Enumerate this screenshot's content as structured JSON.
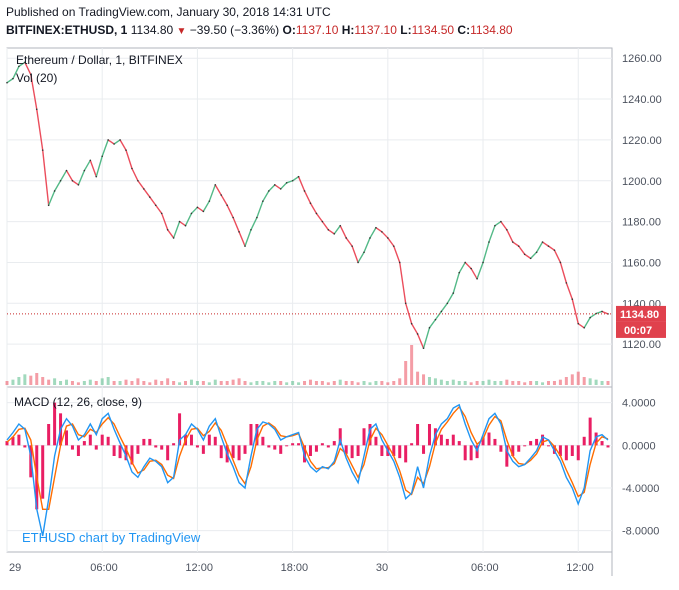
{
  "header": {
    "published": "Published on TradingView.com, January 30, 2018 14:31 UTC",
    "symbol": "BITFINEX:ETHUSD, 1",
    "last": "1134.80",
    "change": "−39.50 (−3.36%)",
    "o_label": "O:",
    "o_value": "1137.10",
    "h_label": "H:",
    "h_value": "1137.10",
    "l_label": "L:",
    "l_value": "1134.50",
    "c_label": "C:",
    "c_value": "1134.80"
  },
  "legend": {
    "title": "Ethereum / Dollar, 1, BITFINEX",
    "vol": "Vol (20)",
    "macd": "MACD (12, 26, close, 9)",
    "watermark": "ETHUSD chart by TradingView"
  },
  "colors": {
    "up": "#53b987",
    "down": "#eb4d5c",
    "price_line": "#c62828",
    "macd_line": "#2196f3",
    "signal_line": "#ff6d00",
    "hist_pos": "#e91e63",
    "hist_neg": "#e91e63",
    "grid": "#e9ecef",
    "text": "#4c525e"
  },
  "chart_data": [
    {
      "type": "line",
      "name": "price",
      "title": "Ethereum / Dollar, 1, BITFINEX",
      "current_price": "1134.80",
      "countdown": "00:07",
      "ylim": [
        1100,
        1265
      ],
      "y_ticks": [
        "1260.00",
        "1240.00",
        "1220.00",
        "1200.00",
        "1180.00",
        "1160.00",
        "1140.00",
        "1120.00"
      ],
      "x_ticks": [
        "29",
        "06:00",
        "12:00",
        "18:00",
        "30",
        "06:00",
        "12:00"
      ],
      "x": [
        0,
        6,
        12,
        18,
        24,
        30,
        36,
        42,
        48,
        54,
        60,
        66,
        72,
        78,
        84,
        90,
        96,
        102,
        108,
        114,
        120,
        126,
        132,
        138,
        144,
        150,
        156,
        162,
        168,
        174,
        180,
        186,
        192,
        198,
        204,
        210,
        216,
        222,
        228,
        234,
        240,
        246,
        252,
        258,
        264,
        270,
        276,
        282,
        288,
        294,
        300,
        306,
        312,
        318,
        324,
        330,
        336,
        342,
        348,
        354,
        360,
        366,
        372,
        378,
        384,
        390,
        396,
        402,
        408,
        414,
        420,
        426,
        432,
        438,
        444,
        450,
        456,
        462,
        468,
        474,
        480,
        486,
        492,
        498,
        504,
        510,
        516,
        522,
        528,
        534,
        540,
        546,
        552,
        558,
        564,
        570,
        576,
        582,
        588,
        594,
        600,
        606
      ],
      "values": [
        1248,
        1250,
        1256,
        1258,
        1252,
        1235,
        1215,
        1188,
        1195,
        1200,
        1205,
        1200,
        1198,
        1205,
        1210,
        1202,
        1212,
        1220,
        1218,
        1220,
        1215,
        1206,
        1200,
        1196,
        1192,
        1188,
        1184,
        1176,
        1172,
        1180,
        1178,
        1184,
        1187,
        1185,
        1190,
        1198,
        1193,
        1188,
        1182,
        1175,
        1168,
        1176,
        1182,
        1190,
        1195,
        1198,
        1196,
        1199,
        1200,
        1202,
        1195,
        1189,
        1184,
        1180,
        1176,
        1174,
        1178,
        1172,
        1168,
        1160,
        1165,
        1172,
        1177,
        1175,
        1172,
        1168,
        1160,
        1140,
        1130,
        1125,
        1118,
        1128,
        1132,
        1136,
        1140,
        1145,
        1155,
        1160,
        1157,
        1152,
        1160,
        1170,
        1178,
        1180,
        1176,
        1170,
        1168,
        1164,
        1162,
        1165,
        1170,
        1168,
        1166,
        1160,
        1150,
        1142,
        1130,
        1128,
        1133,
        1135,
        1136,
        1134.8
      ]
    },
    {
      "type": "bar",
      "name": "volume",
      "title": "Vol (20)",
      "x": [
        0,
        6,
        12,
        18,
        24,
        30,
        36,
        42,
        48,
        54,
        60,
        66,
        72,
        78,
        84,
        90,
        96,
        102,
        108,
        114,
        120,
        126,
        132,
        138,
        144,
        150,
        156,
        162,
        168,
        174,
        180,
        186,
        192,
        198,
        204,
        210,
        216,
        222,
        228,
        234,
        240,
        246,
        252,
        258,
        264,
        270,
        276,
        282,
        288,
        294,
        300,
        306,
        312,
        318,
        324,
        330,
        336,
        342,
        348,
        354,
        360,
        366,
        372,
        378,
        384,
        390,
        396,
        402,
        408,
        414,
        420,
        426,
        432,
        438,
        444,
        450,
        456,
        462,
        468,
        474,
        480,
        486,
        492,
        498,
        504,
        510,
        516,
        522,
        528,
        534,
        540,
        546,
        552,
        558,
        564,
        570,
        576,
        582,
        588,
        594,
        600,
        606
      ],
      "values": [
        3,
        4,
        6,
        8,
        7,
        9,
        6,
        4,
        5,
        3,
        4,
        3,
        2,
        3,
        4,
        3,
        5,
        6,
        3,
        3,
        4,
        3,
        5,
        3,
        2,
        4,
        3,
        5,
        3,
        2,
        3,
        4,
        3,
        3,
        2,
        4,
        3,
        3,
        4,
        5,
        3,
        2,
        3,
        3,
        2,
        3,
        3,
        2,
        3,
        2,
        3,
        4,
        3,
        3,
        2,
        3,
        4,
        3,
        3,
        2,
        3,
        2,
        3,
        3,
        2,
        3,
        5,
        18,
        30,
        10,
        8,
        6,
        5,
        4,
        3,
        4,
        3,
        3,
        2,
        3,
        3,
        4,
        3,
        3,
        4,
        3,
        3,
        2,
        3,
        3,
        2,
        3,
        3,
        4,
        6,
        8,
        10,
        6,
        5,
        4,
        3,
        3
      ]
    },
    {
      "type": "line",
      "name": "macd",
      "title": "MACD (12, 26, close, 9)",
      "ylim": [
        -10,
        5
      ],
      "y_ticks": [
        "4.0000",
        "0.0000",
        "-4.0000",
        "-8.0000"
      ],
      "x": [
        0,
        6,
        12,
        18,
        24,
        30,
        36,
        42,
        48,
        54,
        60,
        66,
        72,
        78,
        84,
        90,
        96,
        102,
        108,
        114,
        120,
        126,
        132,
        138,
        144,
        150,
        156,
        162,
        168,
        174,
        180,
        186,
        192,
        198,
        204,
        210,
        216,
        222,
        228,
        234,
        240,
        246,
        252,
        258,
        264,
        270,
        276,
        282,
        288,
        294,
        300,
        306,
        312,
        318,
        324,
        330,
        336,
        342,
        348,
        354,
        360,
        366,
        372,
        378,
        384,
        390,
        396,
        402,
        408,
        414,
        420,
        426,
        432,
        438,
        444,
        450,
        456,
        462,
        468,
        474,
        480,
        486,
        492,
        498,
        504,
        510,
        516,
        522,
        528,
        534,
        540,
        546,
        552,
        558,
        564,
        570,
        576,
        582,
        588,
        594,
        600,
        606
      ],
      "series": [
        {
          "name": "MACD",
          "values": [
            0.5,
            1.2,
            2.0,
            1.5,
            -1.0,
            -6.0,
            -8.5,
            -5.0,
            -1.0,
            1.5,
            2.5,
            1.8,
            0.5,
            1.0,
            2.0,
            1.0,
            2.5,
            3.0,
            1.5,
            0.2,
            -1.0,
            -2.5,
            -3.0,
            -2.0,
            -1.2,
            -1.5,
            -2.0,
            -3.5,
            -3.0,
            0.5,
            1.0,
            2.0,
            1.5,
            0.5,
            1.8,
            2.5,
            0.8,
            -0.8,
            -2.0,
            -3.5,
            -4.0,
            -1.0,
            1.5,
            2.2,
            2.0,
            1.5,
            0.5,
            0.8,
            1.0,
            1.2,
            -1.0,
            -2.0,
            -2.5,
            -2.0,
            -2.2,
            -1.5,
            0.5,
            -1.2,
            -2.5,
            -3.5,
            -1.0,
            1.5,
            2.0,
            0.5,
            -0.5,
            -1.5,
            -3.0,
            -5.0,
            -4.5,
            -2.0,
            -4.0,
            -1.0,
            1.0,
            2.0,
            2.5,
            3.5,
            3.8,
            2.0,
            0.5,
            -0.5,
            1.0,
            2.5,
            3.0,
            2.0,
            -0.5,
            -1.5,
            -2.0,
            -1.8,
            -1.2,
            -0.5,
            0.8,
            0.5,
            -0.5,
            -1.5,
            -3.0,
            -4.0,
            -5.5,
            -4.0,
            -0.5,
            0.8,
            1.0,
            0.5
          ]
        },
        {
          "name": "Signal",
          "values": [
            0.3,
            0.8,
            1.5,
            1.6,
            0.5,
            -3.0,
            -6.0,
            -6.0,
            -3.0,
            0.0,
            1.8,
            2.0,
            1.0,
            0.8,
            1.5,
            1.2,
            2.0,
            2.6,
            2.0,
            0.8,
            -0.3,
            -1.6,
            -2.6,
            -2.3,
            -1.5,
            -1.4,
            -1.8,
            -2.8,
            -3.1,
            -1.0,
            0.5,
            1.5,
            1.6,
            0.9,
            1.3,
            2.1,
            1.4,
            0.0,
            -1.4,
            -2.8,
            -3.6,
            -2.0,
            0.5,
            1.8,
            2.1,
            1.7,
            0.9,
            0.8,
            0.9,
            1.1,
            -0.2,
            -1.5,
            -2.2,
            -2.1,
            -2.1,
            -1.7,
            -0.3,
            -0.8,
            -1.9,
            -3.0,
            -1.8,
            0.5,
            1.6,
            1.0,
            0.0,
            -1.0,
            -2.4,
            -4.2,
            -4.6,
            -3.0,
            -3.6,
            -2.0,
            0.2,
            1.5,
            2.2,
            3.0,
            3.6,
            2.7,
            1.2,
            0.1,
            0.6,
            1.9,
            2.7,
            2.3,
            0.5,
            -1.0,
            -1.7,
            -1.8,
            -1.4,
            -0.8,
            0.3,
            0.5,
            -0.1,
            -1.0,
            -2.3,
            -3.5,
            -4.8,
            -4.4,
            -1.8,
            0.2,
            0.8,
            0.6
          ]
        }
      ]
    }
  ]
}
